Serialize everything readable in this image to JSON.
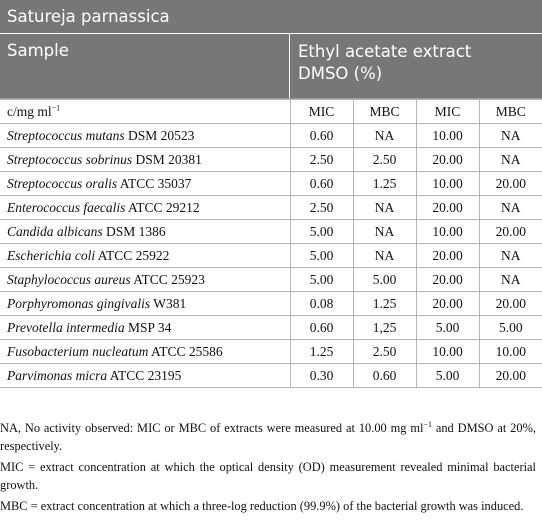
{
  "table": {
    "title": "Satureja parnassica",
    "header": {
      "sample": "Sample",
      "extract_line1": "Ethyl acetate extract",
      "extract_line2": "DMSO (%)"
    },
    "units_row": {
      "unit_prefix": "c/mg ml",
      "unit_exp": "−1",
      "cols": [
        "MIC",
        "MBC",
        "MIC",
        "MBC"
      ]
    },
    "rows": [
      {
        "species": "Streptococcus mutans",
        "strain": " DSM 20523",
        "values": [
          "0.60",
          "NA",
          "10.00",
          "NA"
        ]
      },
      {
        "species": "Streptococcus sobrinus",
        "strain": " DSM 20381",
        "values": [
          "2.50",
          "2.50",
          "20.00",
          "NA"
        ]
      },
      {
        "species": "Streptococcus oralis",
        "strain": " ATCC 35037",
        "values": [
          "0.60",
          "1.25",
          "10.00",
          "20.00"
        ]
      },
      {
        "species": "Enterococcus faecalis",
        "strain": " ATCC 29212",
        "values": [
          "2.50",
          "NA",
          "20.00",
          "NA"
        ]
      },
      {
        "species": "Candida albicans",
        "strain": " DSM 1386",
        "values": [
          "5.00",
          "NA",
          "10.00",
          "20.00"
        ]
      },
      {
        "species": "Escherichia coli",
        "strain": " ATCC 25922",
        "values": [
          "5.00",
          "NA",
          "20.00",
          "NA"
        ]
      },
      {
        "species": "Staphylococcus aureus",
        "strain": " ATCC 25923",
        "values": [
          "5.00",
          "5.00",
          "20.00",
          "NA"
        ]
      },
      {
        "species": "Porphyromonas gingivalis",
        "strain": " W381",
        "values": [
          "0.08",
          "1.25",
          "20.00",
          "20.00"
        ]
      },
      {
        "species": "Prevotella intermedia",
        "strain": " MSP 34",
        "values": [
          "0.60",
          "1,25",
          "5.00",
          "5.00"
        ]
      },
      {
        "species": "Fusobacterium nucleatum",
        "strain": " ATCC 25586",
        "values": [
          "1.25",
          "2.50",
          "10.00",
          "10.00"
        ]
      },
      {
        "species": "Parvimonas micra",
        "strain": " ATCC 23195",
        "values": [
          "0.30",
          "0.60",
          "5.00",
          "20.00"
        ]
      }
    ]
  },
  "notes": {
    "na_a": "NA, No activity observed: MIC or MBC of extracts were measured at 10.00 mg ml",
    "na_exp": "−1",
    "na_b": " and DMSO at 20%, respectively.",
    "mic": "MIC = extract concentration at which the optical density (OD) measurement revealed minimal bacterial growth.",
    "mbc": "MBC = extract concentration at which a three-log reduction (99.9%) of the bacterial growth was induced."
  }
}
